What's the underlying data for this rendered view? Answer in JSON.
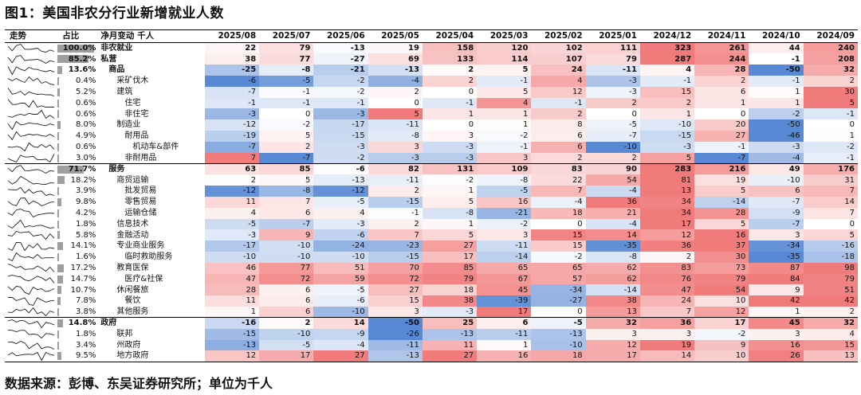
{
  "title": "图1：美国非农分行业新增就业人数",
  "footer": "数据来源：彭博、东吴证券研究所；单位为千人",
  "headers": {
    "trend": "走势",
    "share": "占比",
    "name": "净月变动 千人",
    "periods": [
      "2025/08",
      "2025/07",
      "2025/06",
      "2025/05",
      "2025/04",
      "2025/03",
      "2025/02",
      "2025/01",
      "2024/12",
      "2024/11",
      "2024/10",
      "2024/09"
    ]
  },
  "colors": {
    "positive_max": "#f07070",
    "negative_max": "#4a7fd0",
    "share_bar": "#9e9e9e"
  },
  "rows": [
    {
      "share": "100.0%",
      "name": "非农就业",
      "indent": 0,
      "bold": true,
      "values": [
        22,
        79,
        -13,
        19,
        158,
        120,
        102,
        111,
        323,
        261,
        44,
        240
      ]
    },
    {
      "share": "85.2%",
      "name": "私营",
      "indent": 0,
      "bold": true,
      "values": [
        38,
        77,
        -27,
        69,
        133,
        114,
        107,
        79,
        287,
        244,
        -1,
        208
      ]
    },
    {
      "share": "13.6%",
      "name": "商品",
      "indent": 1,
      "bold": true,
      "values": [
        -25,
        -8,
        -21,
        -13,
        2,
        5,
        24,
        -11,
        4,
        28,
        -50,
        32
      ]
    },
    {
      "share": "0.4%",
      "name": "采矿伐木",
      "indent": 2,
      "bold": false,
      "values": [
        -6,
        -5,
        -2,
        -4,
        2,
        -1,
        4,
        -3,
        -1,
        2,
        -1,
        2
      ]
    },
    {
      "share": "5.2%",
      "name": "建筑",
      "indent": 2,
      "bold": false,
      "values": [
        -7,
        -1,
        -2,
        2,
        0,
        5,
        12,
        -3,
        15,
        6,
        1,
        30
      ]
    },
    {
      "share": "0.6%",
      "name": "住宅",
      "indent": 3,
      "bold": false,
      "values": [
        -1,
        -1,
        -1,
        0,
        -1,
        4,
        -1,
        2,
        2,
        1,
        1,
        5
      ]
    },
    {
      "share": "0.6%",
      "name": "非住宅",
      "indent": 3,
      "bold": false,
      "values": [
        -3,
        0,
        -3,
        5,
        1,
        1,
        2,
        0,
        1,
        0,
        -2,
        -1
      ]
    },
    {
      "share": "8.0%",
      "name": "制造业",
      "indent": 2,
      "bold": false,
      "values": [
        -12,
        -2,
        -17,
        -11,
        0,
        1,
        8,
        -5,
        -10,
        20,
        -50,
        0
      ]
    },
    {
      "share": "4.9%",
      "name": "耐用品",
      "indent": 3,
      "bold": false,
      "values": [
        -19,
        5,
        -15,
        -8,
        3,
        -2,
        6,
        -7,
        -15,
        27,
        -46,
        1
      ]
    },
    {
      "share": "0.6%",
      "name": "机动车&部件",
      "indent": 4,
      "bold": false,
      "values": [
        -7,
        2,
        -3,
        3,
        -3,
        -1,
        6,
        -10,
        -3,
        -1,
        -3,
        -2
      ]
    },
    {
      "share": "3.0%",
      "name": "非耐用品",
      "indent": 3,
      "bold": false,
      "values": [
        7,
        -7,
        -2,
        -3,
        -3,
        3,
        2,
        2,
        5,
        -7,
        -4,
        -1
      ]
    },
    {
      "share": "71.7%",
      "name": "服务",
      "indent": 1,
      "bold": true,
      "values": [
        63,
        85,
        -6,
        82,
        131,
        109,
        83,
        90,
        283,
        216,
        49,
        176
      ]
    },
    {
      "share": "18.2%",
      "name": "商贸运输",
      "indent": 2,
      "bold": false,
      "values": [
        2,
        5,
        -13,
        -11,
        -2,
        -8,
        22,
        54,
        81,
        19,
        -10,
        31
      ]
    },
    {
      "share": "3.9%",
      "name": "批发贸易",
      "indent": 3,
      "bold": false,
      "values": [
        -12,
        -8,
        -12,
        2,
        1,
        -5,
        7,
        -4,
        13,
        5,
        6,
        7
      ]
    },
    {
      "share": "9.8%",
      "name": "零售贸易",
      "indent": 3,
      "bold": false,
      "values": [
        11,
        7,
        -5,
        -15,
        5,
        16,
        -4,
        36,
        34,
        -14,
        -7,
        14
      ]
    },
    {
      "share": "4.2%",
      "name": "运输仓储",
      "indent": 3,
      "bold": false,
      "values": [
        4,
        6,
        4,
        -1,
        -8,
        -21,
        18,
        21,
        34,
        28,
        -9,
        7
      ]
    },
    {
      "share": "1.8%",
      "name": "信息技术",
      "indent": 2,
      "bold": false,
      "values": [
        -5,
        -7,
        -3,
        2,
        1,
        -2,
        0,
        -4,
        17,
        5,
        -7,
        0
      ]
    },
    {
      "share": "5.8%",
      "name": "金融活动",
      "indent": 2,
      "bold": false,
      "values": [
        -3,
        9,
        -6,
        7,
        5,
        3,
        15,
        14,
        12,
        16,
        3,
        5
      ]
    },
    {
      "share": "14.1%",
      "name": "专业商业服务",
      "indent": 2,
      "bold": false,
      "values": [
        -17,
        -10,
        -24,
        -23,
        27,
        -11,
        15,
        -35,
        36,
        37,
        -34,
        -16
      ]
    },
    {
      "share": "1.6%",
      "name": "临时救助服务",
      "indent": 3,
      "bold": false,
      "values": [
        -10,
        -10,
        -10,
        -15,
        17,
        -14,
        -2,
        -8,
        2,
        30,
        -35,
        -18
      ]
    },
    {
      "share": "17.2%",
      "name": "教育医保",
      "indent": 2,
      "bold": false,
      "values": [
        46,
        77,
        51,
        70,
        85,
        65,
        65,
        62,
        83,
        73,
        87,
        98
      ]
    },
    {
      "share": "14.7%",
      "name": "医疗&社保",
      "indent": 3,
      "bold": false,
      "values": [
        47,
        72,
        59,
        72,
        79,
        67,
        57,
        62,
        76,
        79,
        84,
        79
      ]
    },
    {
      "share": "10.7%",
      "name": "休闲餐旅",
      "indent": 2,
      "bold": false,
      "values": [
        28,
        6,
        -5,
        27,
        18,
        45,
        -34,
        -14,
        47,
        54,
        9,
        51
      ]
    },
    {
      "share": "7.8%",
      "name": "餐饮",
      "indent": 3,
      "bold": false,
      "values": [
        11,
        6,
        -6,
        15,
        38,
        -39,
        -27,
        38,
        24,
        10,
        42,
        42
      ]
    },
    {
      "share": "3.8%",
      "name": "其他服务",
      "indent": 2,
      "bold": false,
      "values": [
        1,
        6,
        -10,
        3,
        -3,
        17,
        0,
        13,
        7,
        12,
        1,
        2
      ]
    },
    {
      "share": "14.8%",
      "name": "政府",
      "indent": 0,
      "bold": true,
      "values": [
        -16,
        2,
        14,
        -50,
        25,
        6,
        -5,
        32,
        36,
        17,
        45,
        32
      ]
    },
    {
      "share": "1.8%",
      "name": "联邦",
      "indent": 2,
      "bold": false,
      "values": [
        -15,
        -10,
        -9,
        -26,
        -13,
        -11,
        -13,
        3,
        3,
        -2,
        3,
        4
      ]
    },
    {
      "share": "3.4%",
      "name": "州政府",
      "indent": 2,
      "bold": false,
      "values": [
        -13,
        -5,
        -4,
        -11,
        11,
        1,
        -10,
        12,
        19,
        9,
        16,
        15
      ]
    },
    {
      "share": "9.5%",
      "name": "地方政府",
      "indent": 2,
      "bold": false,
      "values": [
        12,
        17,
        27,
        -13,
        27,
        16,
        18,
        17,
        14,
        10,
        26,
        13
      ]
    }
  ]
}
